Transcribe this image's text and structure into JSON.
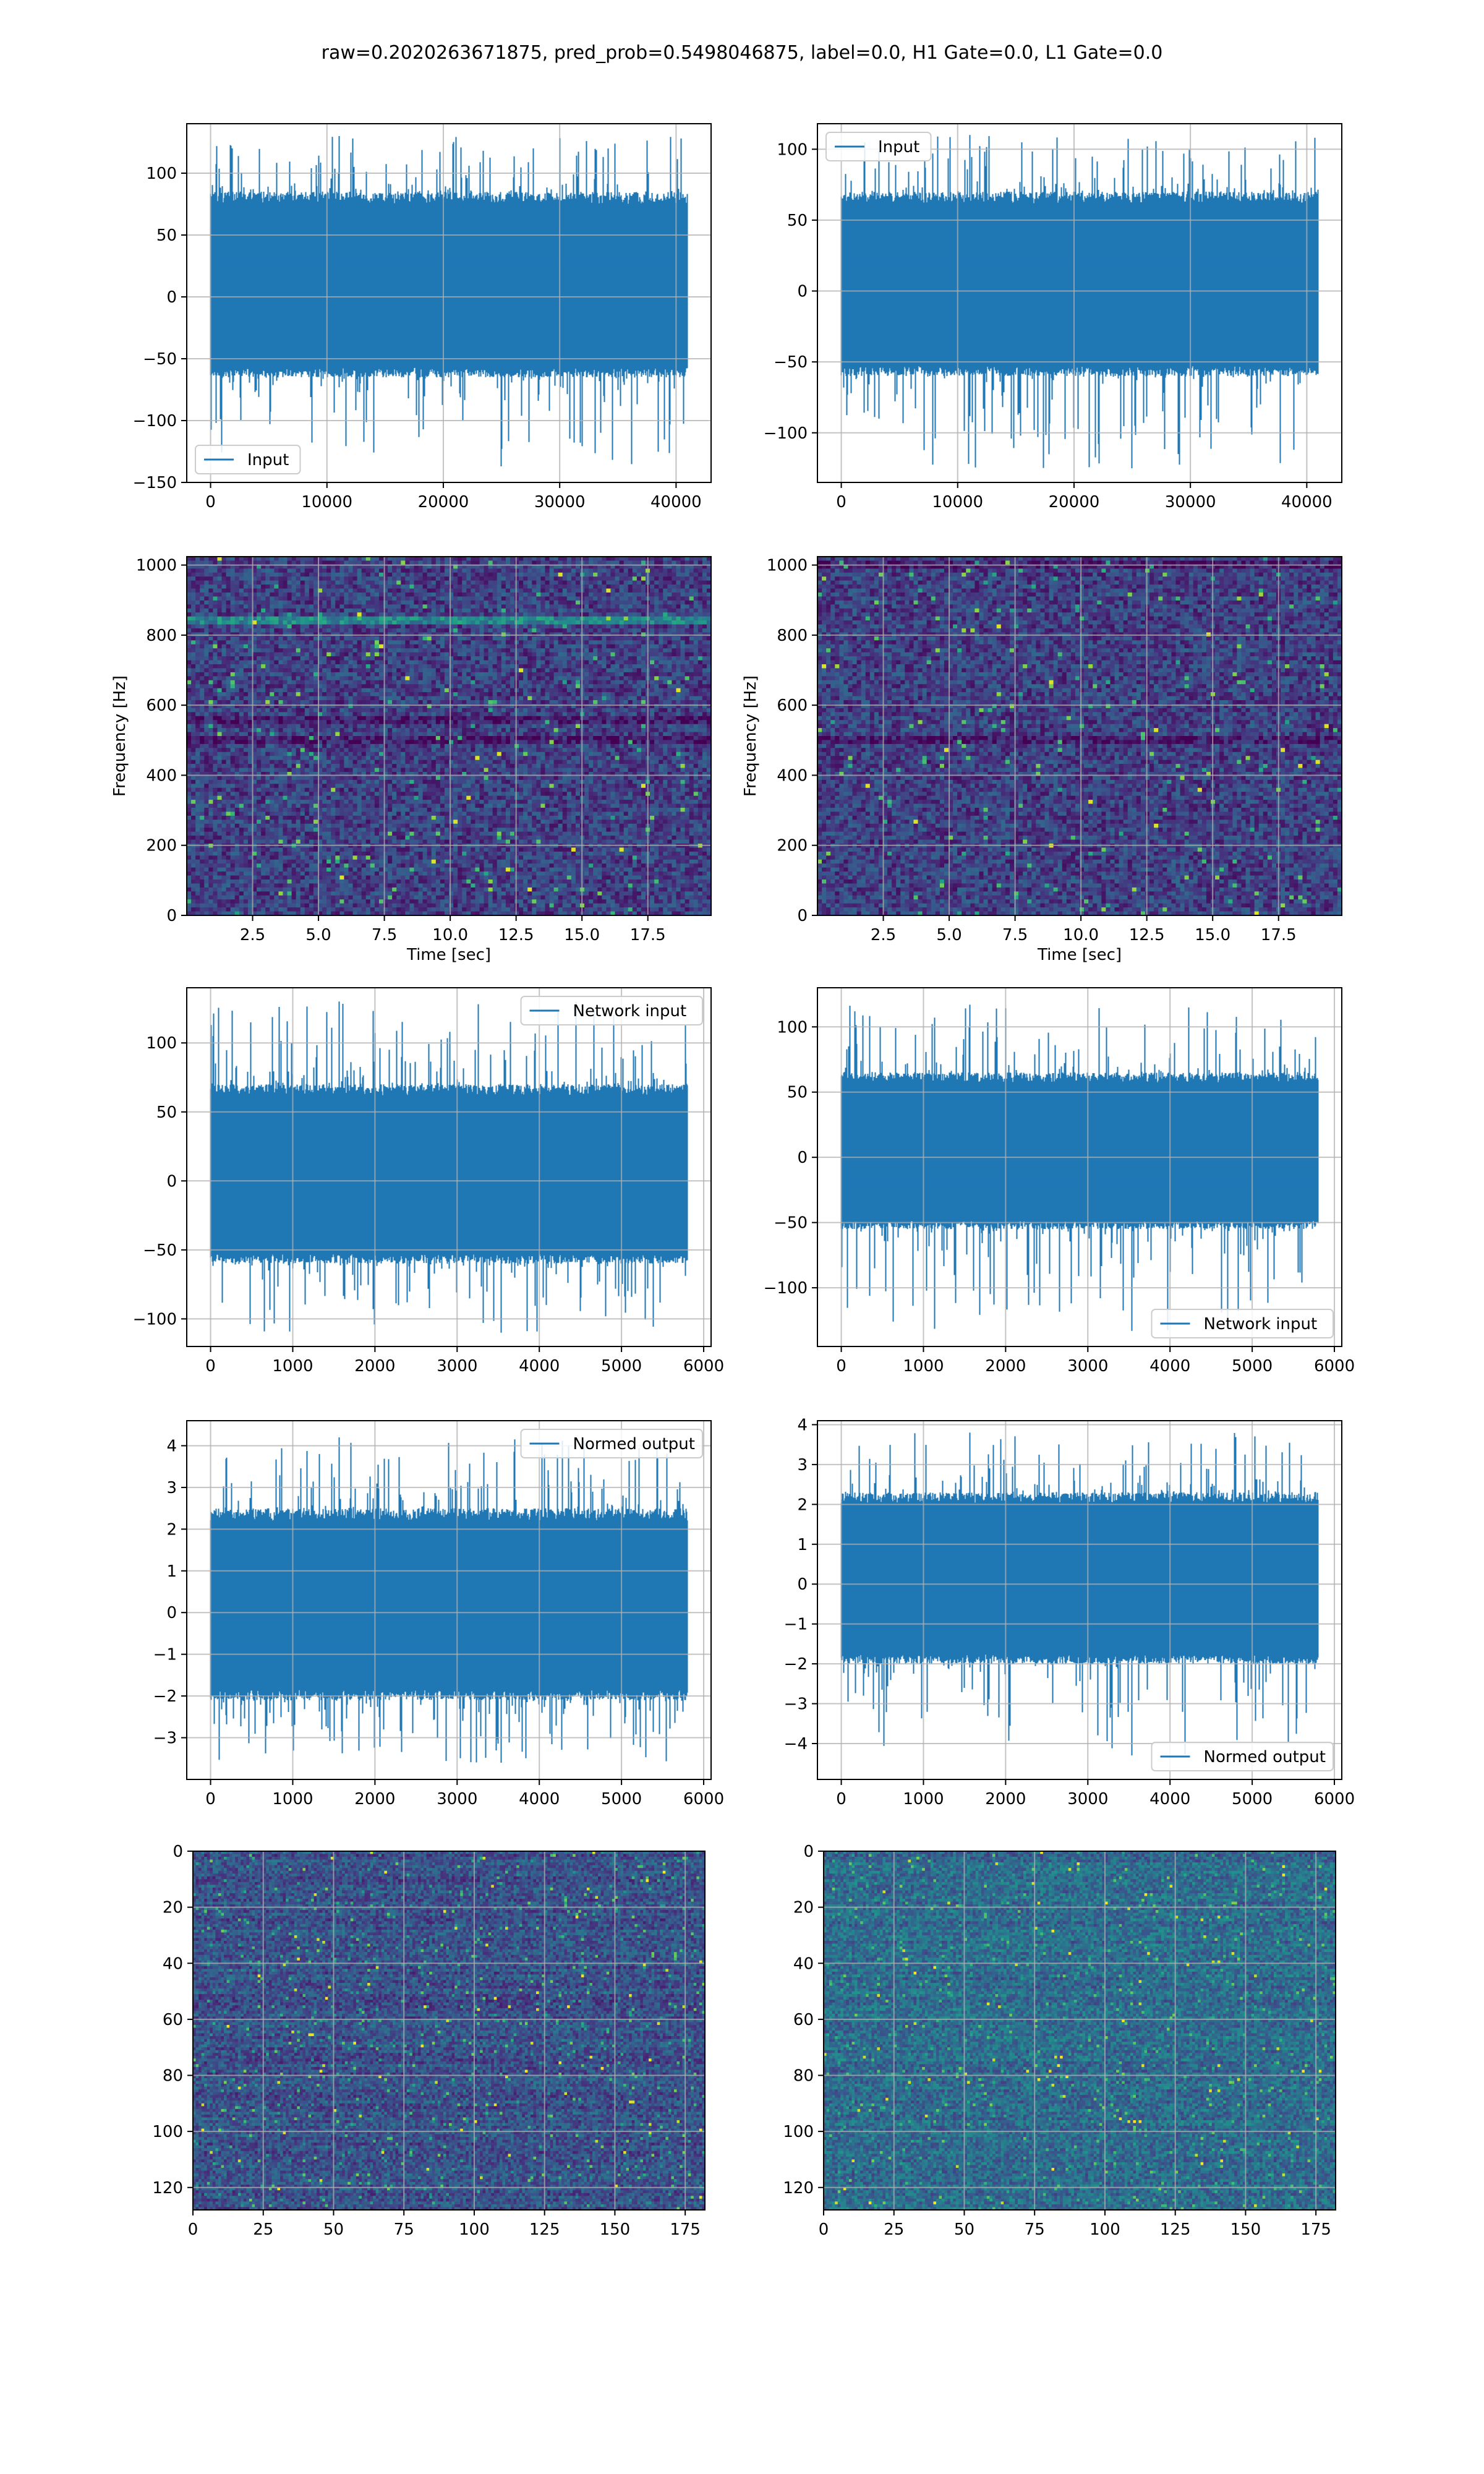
{
  "suptitle": "raw=0.2020263671875, pred_prob=0.5498046875, label=0.0, H1 Gate=0.0, L1 Gate=0.0",
  "colors": {
    "line": "#1f77b4",
    "grid": "#b0b0b0",
    "viridis": [
      "#440154",
      "#472d7b",
      "#3b528b",
      "#2c728e",
      "#21918c",
      "#28ae80",
      "#5ec962",
      "#addc30",
      "#fde725"
    ]
  },
  "chart_data": [
    {
      "id": "h1-raw",
      "type": "line",
      "series": [
        {
          "name": "Input",
          "n": 40960,
          "mean": 0,
          "typical_envelope": [
            -65,
            85
          ],
          "peak_max": 130,
          "peak_min": -137
        }
      ],
      "xlim": [
        -2048,
        43008
      ],
      "ylim": [
        -150,
        140
      ],
      "xticks": [
        0,
        10000,
        20000,
        30000,
        40000
      ],
      "xtick_labels": [
        "0",
        "10000",
        "20000",
        "30000",
        "40000"
      ],
      "yticks": [
        -150,
        -100,
        -50,
        0,
        50,
        100
      ],
      "ytick_labels": [
        "−150",
        "−100",
        "−50",
        "0",
        "50",
        "100"
      ],
      "legend": "lower-left",
      "grid": true
    },
    {
      "id": "l1-raw",
      "type": "line",
      "series": [
        {
          "name": "Input",
          "n": 40960,
          "mean": 0,
          "typical_envelope": [
            -60,
            70
          ],
          "peak_max": 110,
          "peak_min": -125
        }
      ],
      "xlim": [
        -2048,
        43008
      ],
      "ylim": [
        -135,
        118
      ],
      "xticks": [
        0,
        10000,
        20000,
        30000,
        40000
      ],
      "xtick_labels": [
        "0",
        "10000",
        "20000",
        "30000",
        "40000"
      ],
      "yticks": [
        -100,
        -50,
        0,
        50,
        100
      ],
      "ytick_labels": [
        "−100",
        "−50",
        "0",
        "50",
        "100"
      ],
      "legend": "upper-left",
      "grid": true
    },
    {
      "id": "h1-spectrogram",
      "type": "heatmap",
      "xlabel": "Time [sec]",
      "ylabel": "Frequency [Hz]",
      "xlim": [
        0,
        19.9
      ],
      "ylim": [
        0,
        1024
      ],
      "xticks": [
        2.5,
        5,
        7.5,
        10,
        12.5,
        15,
        17.5
      ],
      "xtick_labels": [
        "2.5",
        "5.0",
        "7.5",
        "10.0",
        "12.5",
        "15.0",
        "17.5"
      ],
      "yticks": [
        0,
        200,
        400,
        600,
        800,
        1000
      ],
      "ytick_labels": [
        "0",
        "200",
        "400",
        "600",
        "800",
        "1000"
      ],
      "bright_bands_hz": [
        840
      ],
      "dark_bands_hz": [
        500,
        560
      ],
      "grid": true
    },
    {
      "id": "l1-spectrogram",
      "type": "heatmap",
      "xlabel": "Time [sec]",
      "ylabel": "Frequency [Hz]",
      "xlim": [
        0,
        19.9
      ],
      "ylim": [
        0,
        1024
      ],
      "xticks": [
        2.5,
        5,
        7.5,
        10,
        12.5,
        15,
        17.5
      ],
      "xtick_labels": [
        "2.5",
        "5.0",
        "7.5",
        "10.0",
        "12.5",
        "15.0",
        "17.5"
      ],
      "yticks": [
        0,
        200,
        400,
        600,
        800,
        1000
      ],
      "ytick_labels": [
        "0",
        "200",
        "400",
        "600",
        "800",
        "1000"
      ],
      "bright_bands_hz": [],
      "dark_bands_hz": [
        500,
        1000
      ],
      "grid": true
    },
    {
      "id": "h1-network-input",
      "type": "line",
      "series": [
        {
          "name": "Network input",
          "n": 5800,
          "mean": 0,
          "typical_envelope": [
            -60,
            70
          ],
          "peak_max": 130,
          "peak_min": -110
        }
      ],
      "xlim": [
        -290,
        6090
      ],
      "ylim": [
        -120,
        140
      ],
      "xticks": [
        0,
        1000,
        2000,
        3000,
        4000,
        5000,
        6000
      ],
      "xtick_labels": [
        "0",
        "1000",
        "2000",
        "3000",
        "4000",
        "5000",
        "6000"
      ],
      "yticks": [
        -100,
        -50,
        0,
        50,
        100
      ],
      "ytick_labels": [
        "−100",
        "−50",
        "0",
        "50",
        "100"
      ],
      "legend": "upper-right",
      "grid": true
    },
    {
      "id": "l1-network-input",
      "type": "line",
      "series": [
        {
          "name": "Network input",
          "n": 5800,
          "mean": 0,
          "typical_envelope": [
            -55,
            65
          ],
          "peak_max": 117,
          "peak_min": -133
        }
      ],
      "xlim": [
        -290,
        6090
      ],
      "ylim": [
        -145,
        130
      ],
      "xticks": [
        0,
        1000,
        2000,
        3000,
        4000,
        5000,
        6000
      ],
      "xtick_labels": [
        "0",
        "1000",
        "2000",
        "3000",
        "4000",
        "5000",
        "6000"
      ],
      "yticks": [
        -100,
        -50,
        0,
        50,
        100
      ],
      "ytick_labels": [
        "−100",
        "−50",
        "0",
        "50",
        "100"
      ],
      "legend": "lower-right",
      "grid": true
    },
    {
      "id": "h1-normed-output",
      "type": "line",
      "series": [
        {
          "name": "Normed output",
          "n": 5800,
          "mean": 0,
          "typical_envelope": [
            -2.1,
            2.5
          ],
          "peak_max": 4.2,
          "peak_min": -3.6
        }
      ],
      "xlim": [
        -290,
        6090
      ],
      "ylim": [
        -4.0,
        4.6
      ],
      "xticks": [
        0,
        1000,
        2000,
        3000,
        4000,
        5000,
        6000
      ],
      "xtick_labels": [
        "0",
        "1000",
        "2000",
        "3000",
        "4000",
        "5000",
        "6000"
      ],
      "yticks": [
        -3,
        -2,
        -1,
        0,
        1,
        2,
        3,
        4
      ],
      "ytick_labels": [
        "−3",
        "−2",
        "−1",
        "0",
        "1",
        "2",
        "3",
        "4"
      ],
      "legend": "upper-right",
      "grid": true
    },
    {
      "id": "l1-normed-output",
      "type": "line",
      "series": [
        {
          "name": "Normed output",
          "n": 5800,
          "mean": 0,
          "typical_envelope": [
            -2.0,
            2.3
          ],
          "peak_max": 3.8,
          "peak_min": -4.3
        }
      ],
      "xlim": [
        -290,
        6090
      ],
      "ylim": [
        -4.9,
        4.1
      ],
      "xticks": [
        0,
        1000,
        2000,
        3000,
        4000,
        5000,
        6000
      ],
      "xtick_labels": [
        "0",
        "1000",
        "2000",
        "3000",
        "4000",
        "5000",
        "6000"
      ],
      "yticks": [
        -4,
        -3,
        -2,
        -1,
        0,
        1,
        2,
        3,
        4
      ],
      "ytick_labels": [
        "−4",
        "−3",
        "−2",
        "−1",
        "0",
        "1",
        "2",
        "3",
        "4"
      ],
      "legend": "lower-right",
      "grid": true
    },
    {
      "id": "h1-network-features",
      "type": "heatmap",
      "rows": 128,
      "cols": 182,
      "xlim": [
        0,
        182
      ],
      "ylim": [
        128,
        0
      ],
      "xticks": [
        0,
        25,
        50,
        75,
        100,
        125,
        150,
        175
      ],
      "xtick_labels": [
        "0",
        "25",
        "50",
        "75",
        "100",
        "125",
        "150",
        "175"
      ],
      "yticks": [
        0,
        20,
        40,
        60,
        80,
        100,
        120
      ],
      "ytick_labels": [
        "0",
        "20",
        "40",
        "60",
        "80",
        "100",
        "120"
      ],
      "grid": true
    },
    {
      "id": "l1-network-features",
      "type": "heatmap",
      "rows": 128,
      "cols": 182,
      "xlim": [
        0,
        182
      ],
      "ylim": [
        128,
        0
      ],
      "xticks": [
        0,
        25,
        50,
        75,
        100,
        125,
        150,
        175
      ],
      "xtick_labels": [
        "0",
        "25",
        "50",
        "75",
        "100",
        "125",
        "150",
        "175"
      ],
      "yticks": [
        0,
        20,
        40,
        60,
        80,
        100,
        120
      ],
      "ytick_labels": [
        "0",
        "20",
        "40",
        "60",
        "80",
        "100",
        "120"
      ],
      "grid": true
    }
  ]
}
